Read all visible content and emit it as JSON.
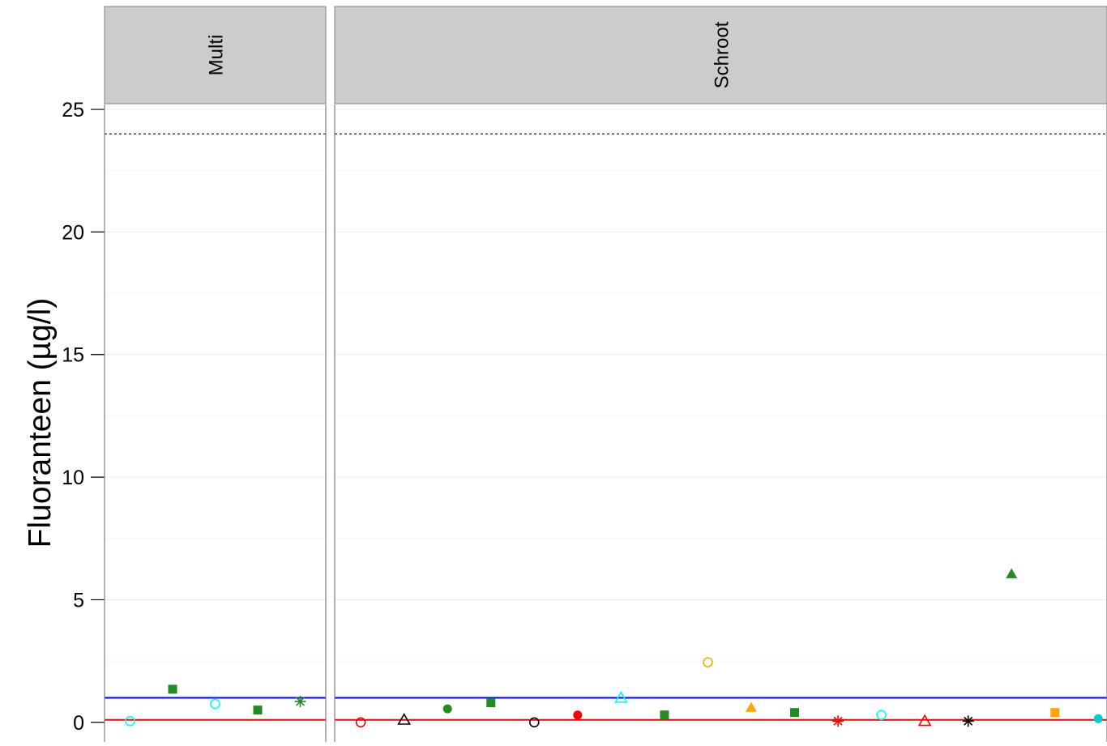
{
  "chart_data": {
    "type": "scatter",
    "ylabel": "Fluoranteen (µg/l)",
    "ylim": [
      -0.8,
      25.2
    ],
    "yticks": [
      0,
      5,
      10,
      15,
      20,
      25
    ],
    "grid": true,
    "reference_lines": [
      {
        "y": 24,
        "style": "dashed",
        "color": "#000000"
      },
      {
        "y": 1,
        "style": "solid",
        "color": "#0000ff"
      },
      {
        "y": 0.1,
        "style": "solid",
        "color": "#ff0000"
      }
    ],
    "panels": [
      {
        "name": "Multi",
        "xlim": [
          0.4,
          5.6
        ],
        "points": [
          {
            "x": 1,
            "y": 0.05,
            "shape": "open-circle",
            "color": "#00ffff"
          },
          {
            "x": 2,
            "y": 1.35,
            "shape": "filled-square",
            "color": "#228b22"
          },
          {
            "x": 3,
            "y": 0.75,
            "shape": "open-circle",
            "color": "#00ffff"
          },
          {
            "x": 4,
            "y": 0.5,
            "shape": "filled-square",
            "color": "#228b22"
          },
          {
            "x": 5,
            "y": 0.85,
            "shape": "asterisk",
            "color": "#228b22"
          }
        ]
      },
      {
        "name": "Schroot",
        "xlim": [
          0.4,
          18.2
        ],
        "points": [
          {
            "x": 1,
            "y": 0.0,
            "shape": "open-circle",
            "color": "#ff0000"
          },
          {
            "x": 2,
            "y": 0.1,
            "shape": "open-triangle",
            "color": "#000000"
          },
          {
            "x": 3,
            "y": 0.55,
            "shape": "filled-circle",
            "color": "#228b22"
          },
          {
            "x": 4,
            "y": 0.8,
            "shape": "filled-square",
            "color": "#228b22"
          },
          {
            "x": 5,
            "y": 0.0,
            "shape": "open-circle",
            "color": "#000000"
          },
          {
            "x": 6,
            "y": 0.3,
            "shape": "filled-circle",
            "color": "#ff0000"
          },
          {
            "x": 7,
            "y": 1.0,
            "shape": "open-triangle",
            "color": "#00ffff"
          },
          {
            "x": 8,
            "y": 0.3,
            "shape": "filled-square",
            "color": "#228b22"
          },
          {
            "x": 9,
            "y": 2.45,
            "shape": "open-circle",
            "color": "#ffa500"
          },
          {
            "x": 10,
            "y": 0.6,
            "shape": "filled-triangle",
            "color": "#ffa500"
          },
          {
            "x": 11,
            "y": 0.4,
            "shape": "filled-square",
            "color": "#228b22"
          },
          {
            "x": 12,
            "y": 0.05,
            "shape": "asterisk",
            "color": "#ff0000"
          },
          {
            "x": 13,
            "y": 0.3,
            "shape": "open-circle",
            "color": "#00ffff"
          },
          {
            "x": 14,
            "y": 0.05,
            "shape": "open-triangle",
            "color": "#ff0000"
          },
          {
            "x": 15,
            "y": 0.05,
            "shape": "asterisk",
            "color": "#000000"
          },
          {
            "x": 16,
            "y": 6.05,
            "shape": "filled-triangle",
            "color": "#228b22"
          },
          {
            "x": 17,
            "y": 0.4,
            "shape": "filled-square",
            "color": "#ffa500"
          },
          {
            "x": 18,
            "y": 0.15,
            "shape": "filled-circle",
            "color": "#00ced1"
          }
        ]
      }
    ]
  }
}
